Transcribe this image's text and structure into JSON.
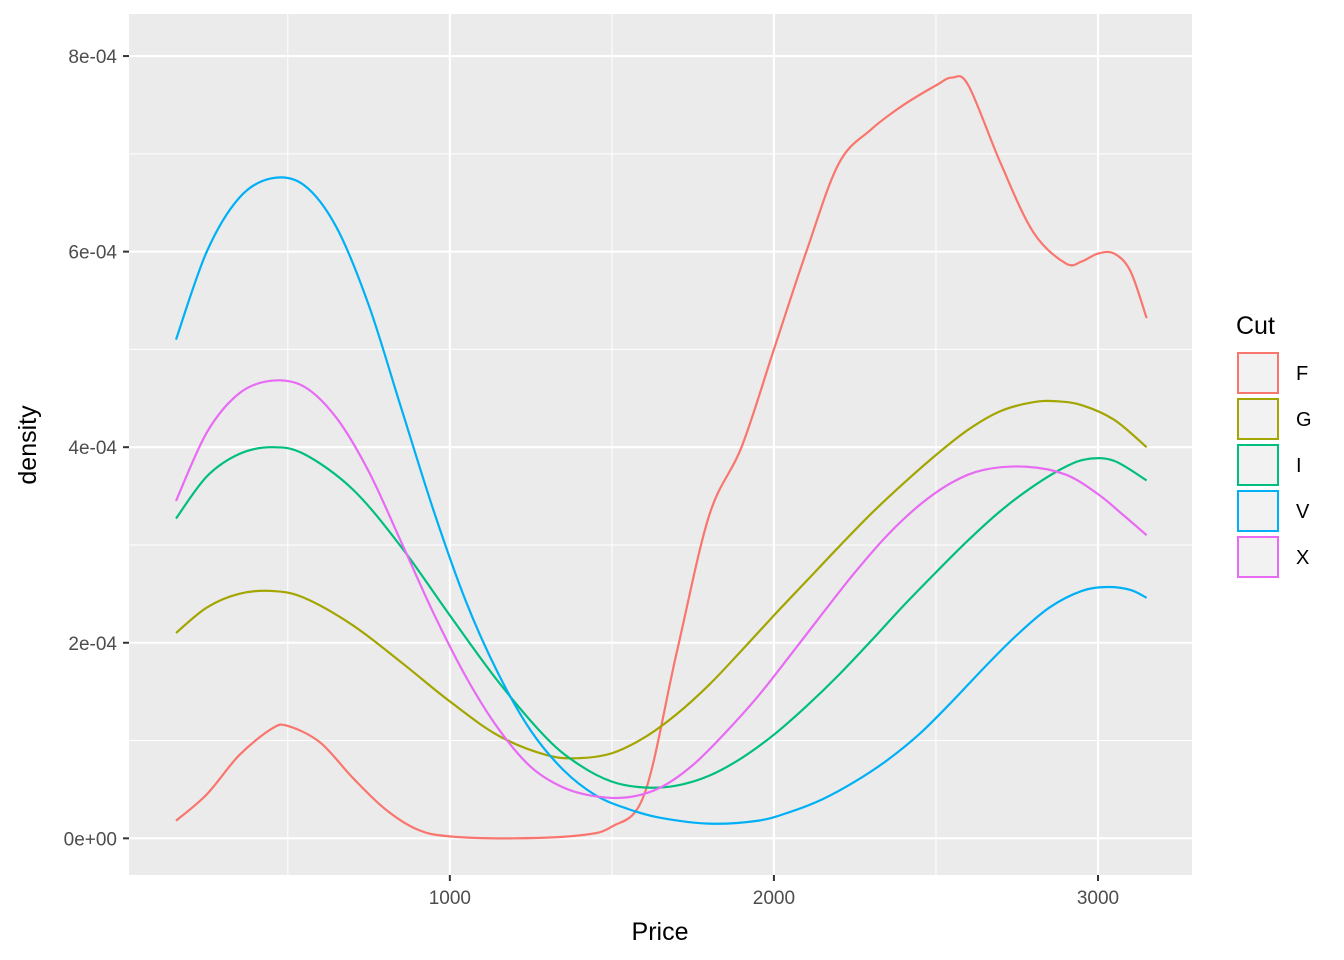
{
  "chart_data": {
    "type": "line",
    "xlabel": "Price",
    "ylabel": "density",
    "xlim": [
      10,
      3290
    ],
    "ylim": [
      -3.75e-05,
      0.000843
    ],
    "x_ticks": [
      1000,
      2000,
      3000
    ],
    "x_tick_labels": [
      "1000",
      "2000",
      "3000"
    ],
    "y_ticks": [
      0,
      0.0002,
      0.0004,
      0.0006,
      0.0008
    ],
    "y_tick_labels": [
      "0e+00",
      "2e-04",
      "4e-04",
      "6e-04",
      "8e-04"
    ],
    "grid": true,
    "panel_background": "#ebebeb",
    "legend": {
      "title": "Cut",
      "position": "right"
    },
    "series": [
      {
        "name": "F",
        "color": "#F8766D",
        "points": [
          [
            155,
            1.8e-05
          ],
          [
            250,
            4.5e-05
          ],
          [
            350,
            8.5e-05
          ],
          [
            450,
            0.000112
          ],
          [
            500,
            0.000115
          ],
          [
            600,
            9.8e-05
          ],
          [
            700,
            6.2e-05
          ],
          [
            800,
            3e-05
          ],
          [
            900,
            9e-06
          ],
          [
            1000,
            2e-06
          ],
          [
            1200,
            0.0
          ],
          [
            1400,
            3e-06
          ],
          [
            1500,
            1.2e-05
          ],
          [
            1600,
            4.5e-05
          ],
          [
            1700,
            0.00019
          ],
          [
            1800,
            0.00033
          ],
          [
            1900,
            0.0004
          ],
          [
            2000,
            0.0005
          ],
          [
            2100,
            0.0006
          ],
          [
            2200,
            0.00069
          ],
          [
            2300,
            0.000725
          ],
          [
            2400,
            0.00075
          ],
          [
            2500,
            0.00077
          ],
          [
            2550,
            0.000778
          ],
          [
            2600,
            0.00077
          ],
          [
            2700,
            0.00069
          ],
          [
            2800,
            0.00062
          ],
          [
            2900,
            0.000588
          ],
          [
            2950,
            0.00059
          ],
          [
            3000,
            0.000598
          ],
          [
            3050,
            0.000598
          ],
          [
            3100,
            0.00058
          ],
          [
            3150,
            0.000532
          ]
        ]
      },
      {
        "name": "G",
        "color": "#A3A500",
        "points": [
          [
            155,
            0.00021
          ],
          [
            250,
            0.000236
          ],
          [
            350,
            0.00025
          ],
          [
            450,
            0.000253
          ],
          [
            550,
            0.000246
          ],
          [
            700,
            0.000218
          ],
          [
            850,
            0.00018
          ],
          [
            1000,
            0.00014
          ],
          [
            1150,
            0.000105
          ],
          [
            1300,
            8.5e-05
          ],
          [
            1400,
            8.2e-05
          ],
          [
            1500,
            8.7e-05
          ],
          [
            1600,
            0.000103
          ],
          [
            1700,
            0.000127
          ],
          [
            1800,
            0.000157
          ],
          [
            1900,
            0.000192
          ],
          [
            2000,
            0.000228
          ],
          [
            2100,
            0.000263
          ],
          [
            2200,
            0.000298
          ],
          [
            2300,
            0.000332
          ],
          [
            2400,
            0.000363
          ],
          [
            2500,
            0.000392
          ],
          [
            2600,
            0.000418
          ],
          [
            2700,
            0.000437
          ],
          [
            2800,
            0.000446
          ],
          [
            2870,
            0.000447
          ],
          [
            2950,
            0.000443
          ],
          [
            3050,
            0.000428
          ],
          [
            3150,
            0.0004
          ]
        ]
      },
      {
        "name": "I",
        "color": "#00BF7D",
        "points": [
          [
            155,
            0.000327
          ],
          [
            250,
            0.00037
          ],
          [
            350,
            0.000393
          ],
          [
            450,
            0.0004
          ],
          [
            550,
            0.000393
          ],
          [
            700,
            0.000357
          ],
          [
            850,
            0.000298
          ],
          [
            1000,
            0.000228
          ],
          [
            1150,
            0.00016
          ],
          [
            1300,
            0.000102
          ],
          [
            1400,
            7.5e-05
          ],
          [
            1500,
            5.8e-05
          ],
          [
            1600,
            5.2e-05
          ],
          [
            1700,
            5.4e-05
          ],
          [
            1800,
            6.4e-05
          ],
          [
            1900,
            8.2e-05
          ],
          [
            2000,
            0.000106
          ],
          [
            2100,
            0.000135
          ],
          [
            2200,
            0.000167
          ],
          [
            2300,
            0.000202
          ],
          [
            2400,
            0.000238
          ],
          [
            2500,
            0.000272
          ],
          [
            2600,
            0.000305
          ],
          [
            2700,
            0.000335
          ],
          [
            2800,
            0.00036
          ],
          [
            2900,
            0.00038
          ],
          [
            2970,
            0.000388
          ],
          [
            3050,
            0.000386
          ],
          [
            3150,
            0.000366
          ]
        ]
      },
      {
        "name": "V",
        "color": "#00B0F6",
        "points": [
          [
            155,
            0.00051
          ],
          [
            250,
            0.0006
          ],
          [
            350,
            0.000655
          ],
          [
            450,
            0.000675
          ],
          [
            550,
            0.000668
          ],
          [
            650,
            0.000625
          ],
          [
            750,
            0.000545
          ],
          [
            850,
            0.00044
          ],
          [
            950,
            0.000335
          ],
          [
            1050,
            0.000242
          ],
          [
            1150,
            0.000168
          ],
          [
            1250,
            0.00011
          ],
          [
            1350,
            7e-05
          ],
          [
            1450,
            4.4e-05
          ],
          [
            1550,
            3e-05
          ],
          [
            1650,
            2.1e-05
          ],
          [
            1800,
            1.5e-05
          ],
          [
            1950,
            1.8e-05
          ],
          [
            2050,
            2.7e-05
          ],
          [
            2150,
            4e-05
          ],
          [
            2250,
            5.8e-05
          ],
          [
            2350,
            8e-05
          ],
          [
            2450,
            0.000107
          ],
          [
            2550,
            0.00014
          ],
          [
            2650,
            0.000175
          ],
          [
            2750,
            0.000208
          ],
          [
            2850,
            0.000236
          ],
          [
            2950,
            0.000253
          ],
          [
            3030,
            0.000257
          ],
          [
            3100,
            0.000254
          ],
          [
            3150,
            0.000246
          ]
        ]
      },
      {
        "name": "X",
        "color": "#E76BF3",
        "points": [
          [
            155,
            0.000345
          ],
          [
            250,
            0.000415
          ],
          [
            350,
            0.000455
          ],
          [
            450,
            0.000468
          ],
          [
            550,
            0.000462
          ],
          [
            650,
            0.00043
          ],
          [
            750,
            0.000375
          ],
          [
            850,
            0.000303
          ],
          [
            950,
            0.00023
          ],
          [
            1050,
            0.000165
          ],
          [
            1150,
            0.000112
          ],
          [
            1250,
            7.3e-05
          ],
          [
            1350,
            5.2e-05
          ],
          [
            1450,
            4.3e-05
          ],
          [
            1550,
            4.2e-05
          ],
          [
            1650,
            5.2e-05
          ],
          [
            1750,
            7.5e-05
          ],
          [
            1850,
            0.000108
          ],
          [
            1950,
            0.000145
          ],
          [
            2050,
            0.000187
          ],
          [
            2150,
            0.00023
          ],
          [
            2250,
            0.000272
          ],
          [
            2350,
            0.00031
          ],
          [
            2450,
            0.000341
          ],
          [
            2550,
            0.000364
          ],
          [
            2650,
            0.000377
          ],
          [
            2780,
            0.00038
          ],
          [
            2900,
            0.000372
          ],
          [
            3000,
            0.000352
          ],
          [
            3080,
            0.00033
          ],
          [
            3150,
            0.00031
          ]
        ]
      }
    ]
  }
}
